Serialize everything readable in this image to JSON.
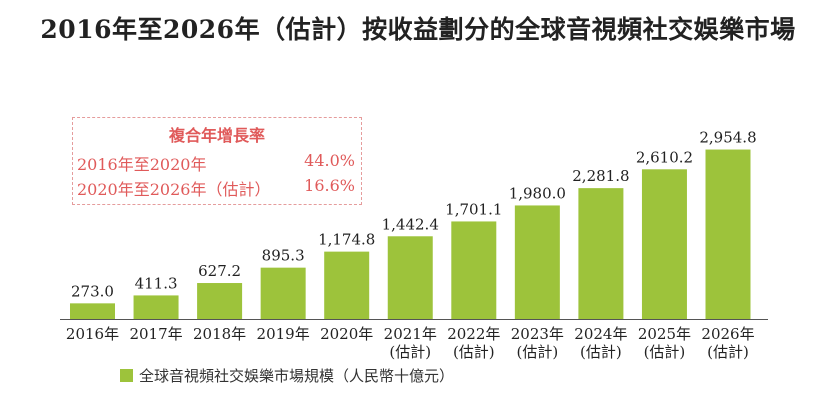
{
  "title": "2016年至2026年（估計）按收益劃分的全球音視頻社交娛樂市場",
  "cagr": {
    "title": "複合年增長率",
    "rows": [
      {
        "label": "2016年至2020年",
        "value": "44.0%"
      },
      {
        "label": "2020年至2026年（估計）",
        "value": "16.6%"
      }
    ]
  },
  "colors": {
    "bar": "#9dc33b",
    "axis": "#555555",
    "cagr": "#e05a5a"
  },
  "chart_data": {
    "type": "bar",
    "categories": [
      [
        "2016年"
      ],
      [
        "2017年"
      ],
      [
        "2018年"
      ],
      [
        "2019年"
      ],
      [
        "2020年"
      ],
      [
        "2021年",
        "(估計)"
      ],
      [
        "2022年",
        "(估計)"
      ],
      [
        "2023年",
        "(估計)"
      ],
      [
        "2024年",
        "(估計)"
      ],
      [
        "2025年",
        "(估計)"
      ],
      [
        "2026年",
        "(估計)"
      ]
    ],
    "series": [
      {
        "name": "全球音視頻社交娛樂市場規模（人民幣十億元）",
        "values": [
          273.0,
          411.3,
          627.2,
          895.3,
          1174.8,
          1442.4,
          1701.1,
          1980.0,
          2281.8,
          2610.2,
          2954.8
        ]
      }
    ],
    "data_labels": [
      "273.0",
      "411.3",
      "627.2",
      "895.3",
      "1,174.8",
      "1,442.4",
      "1,701.1",
      "1,980.0",
      "2,281.8",
      "2,610.2",
      "2,954.8"
    ],
    "grid": false,
    "legend_position": "bottom-left"
  }
}
